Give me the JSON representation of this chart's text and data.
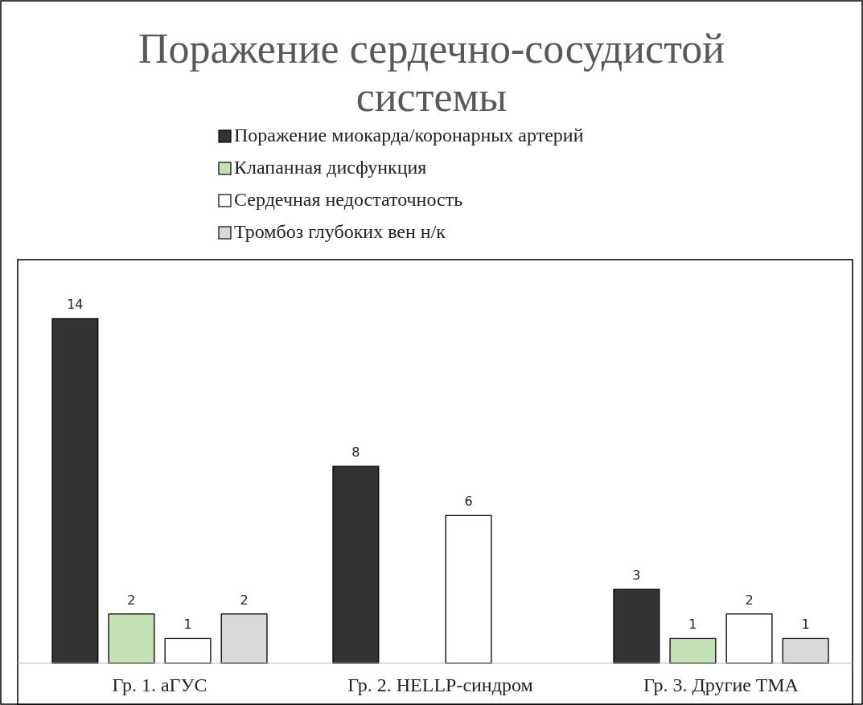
{
  "chart_data": {
    "type": "bar",
    "title": "Поражение сердечно-сосудистой системы",
    "categories": [
      "Гр. 1. аГУС",
      "Гр. 2. HELLP-синдром",
      "Гр. 3. Другие ТМА"
    ],
    "series": [
      {
        "name": "Поражение миокарда/коронарных артерий",
        "color": "#333333",
        "values": [
          14,
          8,
          3
        ]
      },
      {
        "name": "Клапанная дисфункция",
        "color": "#c5e0b4",
        "values": [
          2,
          null,
          1
        ]
      },
      {
        "name": "Сердечная недостаточность",
        "color": "#ffffff",
        "values": [
          1,
          6,
          2
        ]
      },
      {
        "name": "Тромбоз глубоких вен н/к",
        "color": "#d9d9d9",
        "values": [
          2,
          null,
          1
        ]
      }
    ],
    "ylim": [
      0,
      16.4
    ],
    "data_labels": true,
    "legend": "top",
    "tick_labels": "x"
  }
}
